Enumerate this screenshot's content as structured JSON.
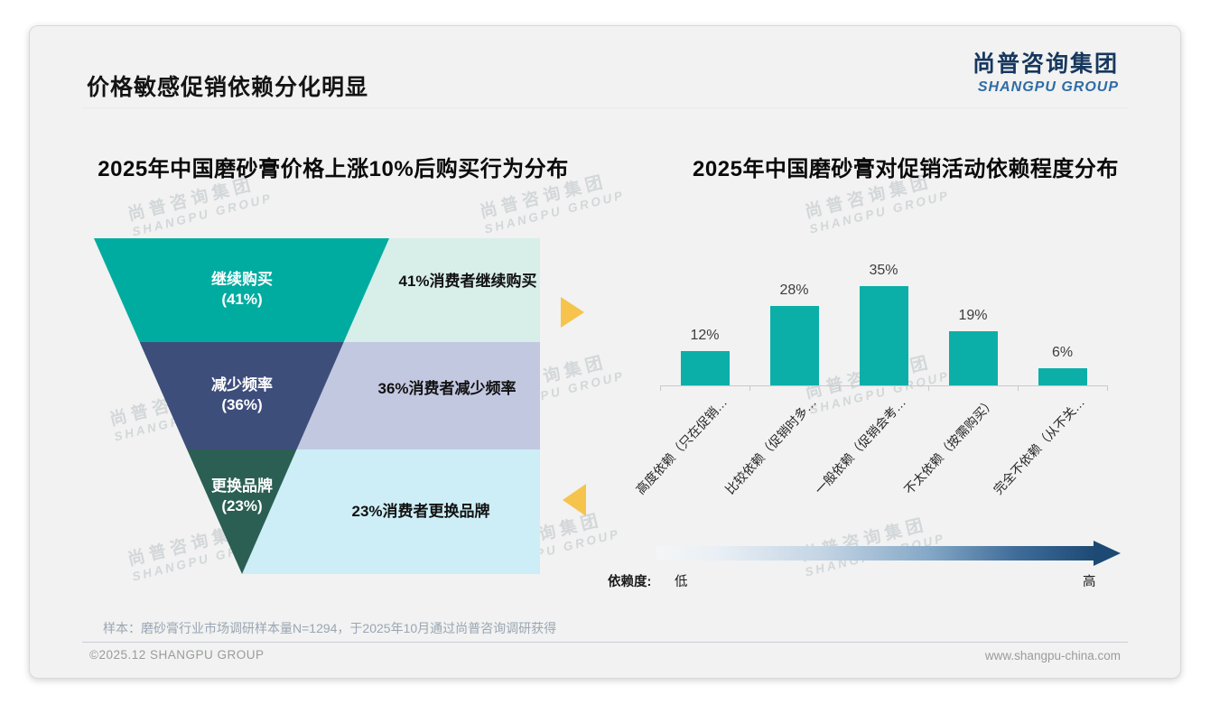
{
  "slide": {
    "title": "价格敏感促销依赖分化明显",
    "sample_note": "样本：磨砂膏行业市场调研样本量N=1294，于2025年10月通过尚普咨询调研获得",
    "copyright": "©2025.12 SHANGPU GROUP",
    "website": "www.shangpu-china.com"
  },
  "logo": {
    "cn": "尚普咨询集团",
    "en": "SHANGPU GROUP"
  },
  "watermark": {
    "line1": "尚普咨询集团",
    "line2": "SHANGPU GROUP"
  },
  "chart_data": [
    {
      "type": "funnel",
      "title": "2025年中国磨砂膏价格上涨10%后购买行为分布",
      "segments": [
        {
          "label": "继续购买",
          "value_label": "(41%)",
          "value": 41,
          "note": "41%消费者继续购买"
        },
        {
          "label": "减少频率",
          "value_label": "(36%)",
          "value": 36,
          "note": "36%消费者减少频率"
        },
        {
          "label": "更换品牌",
          "value_label": "(23%)",
          "value": 23,
          "note": "23%消费者更换品牌"
        }
      ],
      "segment_colors": [
        "#00ACA0",
        "#3E4E7B",
        "#2B5F53"
      ],
      "note_bg_colors": [
        "#D8EEE9",
        "#C3C8E1",
        "#CDEEF6"
      ],
      "accent_arrow_color": "#F6C44D"
    },
    {
      "type": "bar",
      "title": "2025年中国磨砂膏对促销活动依赖程度分布",
      "categories": [
        "高度依赖（只在促销…",
        "比较依赖（促销时多…",
        "一般依赖（促销会考…",
        "不太依赖（按需购买）",
        "完全不依赖（从不关…"
      ],
      "values": [
        12,
        28,
        35,
        19,
        6
      ],
      "value_labels": [
        "12%",
        "28%",
        "35%",
        "19%",
        "6%"
      ],
      "value_suffix": "%",
      "bar_color": "#0CAFA8",
      "ylim": [
        0,
        40
      ],
      "grid": false,
      "legend": {
        "axis_label": "依赖度:",
        "low": "低",
        "high": "高",
        "gradient_end_color": "#1C4A74"
      }
    }
  ]
}
